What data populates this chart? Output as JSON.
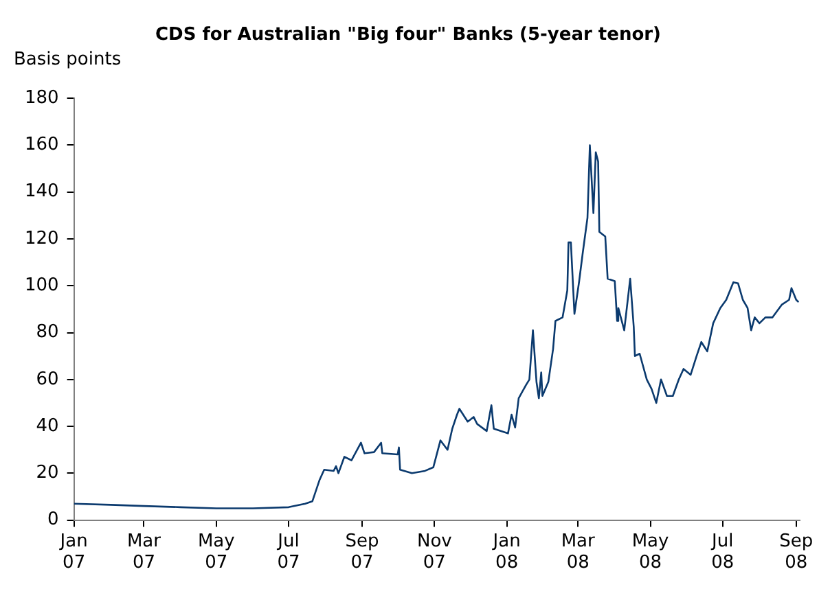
{
  "chart_data": {
    "type": "line",
    "title": "CDS for Australian \"Big four\" Banks (5-year tenor)",
    "ylabel": "Basis points",
    "x": [
      "2007-01-01",
      "2007-02-01",
      "2007-03-01",
      "2007-04-01",
      "2007-05-01",
      "2007-06-01",
      "2007-07-01",
      "2007-07-15",
      "2007-07-21",
      "2007-07-27",
      "2007-07-31",
      "2007-08-08",
      "2007-08-10",
      "2007-08-12",
      "2007-08-17",
      "2007-08-23",
      "2007-08-31",
      "2007-09-03",
      "2007-09-11",
      "2007-09-17",
      "2007-09-18",
      "2007-10-01",
      "2007-10-02",
      "2007-10-03",
      "2007-10-13",
      "2007-10-24",
      "2007-10-31",
      "2007-11-06",
      "2007-11-12",
      "2007-11-16",
      "2007-11-20",
      "2007-11-22",
      "2007-11-29",
      "2007-12-04",
      "2007-12-07",
      "2007-12-15",
      "2007-12-19",
      "2007-12-21",
      "2008-01-02",
      "2008-01-05",
      "2008-01-08",
      "2008-01-11",
      "2008-01-17",
      "2008-01-20",
      "2008-01-23",
      "2008-01-26",
      "2008-01-28",
      "2008-01-30",
      "2008-01-31",
      "2008-02-05",
      "2008-02-09",
      "2008-02-11",
      "2008-02-17",
      "2008-02-21",
      "2008-02-22",
      "2008-02-24",
      "2008-02-27",
      "2008-03-02",
      "2008-03-05",
      "2008-03-09",
      "2008-03-11",
      "2008-03-14",
      "2008-03-16",
      "2008-03-18",
      "2008-03-19",
      "2008-03-24",
      "2008-03-26",
      "2008-04-01",
      "2008-04-03",
      "2008-04-04",
      "2008-04-09",
      "2008-04-14",
      "2008-04-17",
      "2008-04-18",
      "2008-04-22",
      "2008-04-28",
      "2008-05-02",
      "2008-05-06",
      "2008-05-10",
      "2008-05-15",
      "2008-05-20",
      "2008-05-25",
      "2008-05-29",
      "2008-06-04",
      "2008-06-09",
      "2008-06-13",
      "2008-06-18",
      "2008-06-23",
      "2008-06-29",
      "2008-07-04",
      "2008-07-10",
      "2008-07-14",
      "2008-07-18",
      "2008-07-22",
      "2008-07-25",
      "2008-07-28",
      "2008-08-01",
      "2008-08-06",
      "2008-08-12",
      "2008-08-20",
      "2008-08-26",
      "2008-08-28",
      "2008-09-01",
      "2008-09-03"
    ],
    "series": [
      {
        "color": "#0b3a6e",
        "values": [
          7,
          6.5,
          6,
          5.5,
          5,
          5,
          5.5,
          7,
          8,
          17,
          21.5,
          21,
          23,
          20,
          27,
          25.5,
          33,
          28.5,
          29,
          33,
          28.5,
          28,
          31,
          21.5,
          20,
          21,
          22.5,
          34,
          30,
          39,
          45,
          47.5,
          42,
          44,
          41,
          38,
          49,
          39,
          37,
          45,
          39.5,
          52,
          57.5,
          60,
          81,
          59,
          52,
          63,
          53,
          59,
          73,
          85,
          86.5,
          98,
          118.5,
          118.5,
          88,
          102,
          114,
          129,
          160,
          131,
          157,
          153,
          123,
          121,
          103,
          102,
          85,
          90.5,
          81,
          103,
          82.5,
          70,
          71,
          60,
          56,
          50,
          60,
          53,
          53,
          60,
          64.5,
          62,
          70,
          76,
          72,
          84,
          90.5,
          94,
          101.5,
          101,
          94,
          90.5,
          81,
          86.5,
          84,
          86.5,
          86.5,
          92,
          94,
          99,
          94,
          93
        ]
      }
    ],
    "xlim": [
      "2007-01-01",
      "2008-09-04"
    ],
    "xticks": [
      {
        "value": "2007-01-01",
        "label": "Jan 07"
      },
      {
        "value": "2007-03-01",
        "label": "Mar 07"
      },
      {
        "value": "2007-05-01",
        "label": "May 07"
      },
      {
        "value": "2007-07-01",
        "label": "Jul 07"
      },
      {
        "value": "2007-09-01",
        "label": "Sep 07"
      },
      {
        "value": "2007-11-01",
        "label": "Nov 07"
      },
      {
        "value": "2008-01-01",
        "label": "Jan 08"
      },
      {
        "value": "2008-03-01",
        "label": "Mar 08"
      },
      {
        "value": "2008-05-01",
        "label": "May 08"
      },
      {
        "value": "2008-07-01",
        "label": "Jul 08"
      },
      {
        "value": "2008-09-01",
        "label": "Sep 08"
      }
    ],
    "ylim": [
      0,
      180
    ],
    "yticks": [
      0,
      20,
      40,
      60,
      80,
      100,
      120,
      140,
      160,
      180
    ],
    "grid": false,
    "legend": false,
    "marker": "none",
    "line_style": "solid"
  }
}
